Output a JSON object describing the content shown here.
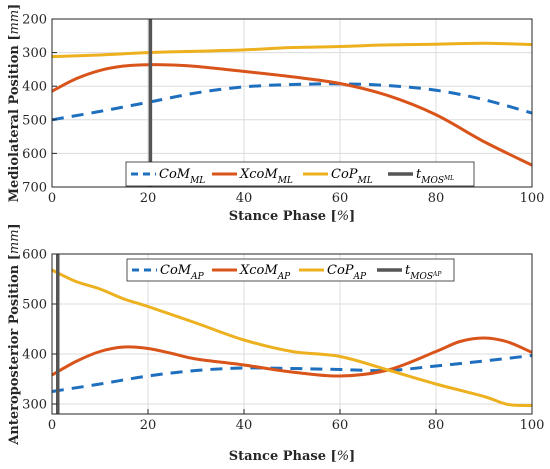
{
  "chart_data": [
    {
      "type": "line",
      "xlabel": "Stance Phase [%]",
      "ylabel": "Mediolateral Position [mm]",
      "xlim": [
        0,
        100
      ],
      "ylim": [
        200,
        700
      ],
      "y_reversed": true,
      "xticks": [
        "0",
        "20",
        "40",
        "60",
        "80",
        "100"
      ],
      "yticks": [
        "200",
        "300",
        "400",
        "500",
        "600",
        "700"
      ],
      "grid": true,
      "legend_position": "bottom-center",
      "series": [
        {
          "name": "CoM_ML",
          "color": "#1f6fbf",
          "style": "dashed",
          "x": [
            0,
            10,
            20,
            30,
            40,
            50,
            60,
            70,
            80,
            90,
            100
          ],
          "y": [
            500,
            475,
            448,
            420,
            402,
            395,
            393,
            398,
            412,
            440,
            480
          ]
        },
        {
          "name": "XcoM_ML",
          "color": "#d9541a",
          "style": "solid",
          "x": [
            0,
            5,
            10,
            15,
            20,
            25,
            30,
            40,
            50,
            60,
            70,
            80,
            90,
            100
          ],
          "y": [
            415,
            378,
            353,
            340,
            336,
            337,
            341,
            356,
            372,
            392,
            428,
            485,
            565,
            635
          ]
        },
        {
          "name": "CoP_ML",
          "color": "#edb120",
          "style": "solid",
          "x": [
            0,
            10,
            20,
            30,
            40,
            50,
            60,
            70,
            80,
            90,
            100
          ],
          "y": [
            312,
            307,
            300,
            296,
            292,
            285,
            282,
            277,
            275,
            272,
            276
          ]
        }
      ],
      "vline": {
        "name": "t_MOS_ML",
        "x": 20.5,
        "color": "#555555"
      },
      "legend": [
        "CoM",
        "ML",
        "XcoM",
        "ML",
        "CoP",
        "ML",
        "t",
        "MOS",
        "ML"
      ]
    },
    {
      "type": "line",
      "xlabel": "Stance Phase [%]",
      "ylabel": "Anteroposterior Position [mm]",
      "xlim": [
        0,
        100
      ],
      "ylim": [
        280,
        600
      ],
      "xticks": [
        "0",
        "20",
        "40",
        "60",
        "80",
        "100"
      ],
      "yticks": [
        "300",
        "400",
        "500",
        "600"
      ],
      "grid": true,
      "legend_position": "top-center",
      "series": [
        {
          "name": "CoM_AP",
          "color": "#1f6fbf",
          "style": "dashed",
          "x": [
            0,
            10,
            20,
            30,
            40,
            50,
            60,
            70,
            80,
            90,
            100
          ],
          "y": [
            325,
            340,
            356,
            367,
            372,
            371,
            369,
            367,
            376,
            386,
            397
          ]
        },
        {
          "name": "XcoM_AP",
          "color": "#d9541a",
          "style": "solid",
          "x": [
            0,
            5,
            10,
            15,
            20,
            25,
            30,
            40,
            50,
            60,
            70,
            80,
            85,
            90,
            95,
            100
          ],
          "y": [
            358,
            385,
            405,
            414,
            411,
            401,
            390,
            378,
            364,
            356,
            368,
            405,
            425,
            432,
            424,
            403
          ]
        },
        {
          "name": "CoP_AP",
          "color": "#edb120",
          "style": "solid",
          "x": [
            0,
            5,
            10,
            15,
            20,
            30,
            40,
            50,
            60,
            70,
            80,
            90,
            95,
            100
          ],
          "y": [
            568,
            545,
            530,
            510,
            495,
            462,
            428,
            405,
            395,
            368,
            340,
            315,
            299,
            297
          ]
        }
      ],
      "vline": {
        "name": "t_MOS_AP",
        "x": 1.2,
        "color": "#555555"
      },
      "legend": [
        "CoM",
        "AP",
        "XcoM",
        "AP",
        "CoP",
        "AP",
        "t",
        "MOS",
        "AP"
      ]
    }
  ],
  "units": {
    "mm": "mm",
    "pct": "%"
  }
}
